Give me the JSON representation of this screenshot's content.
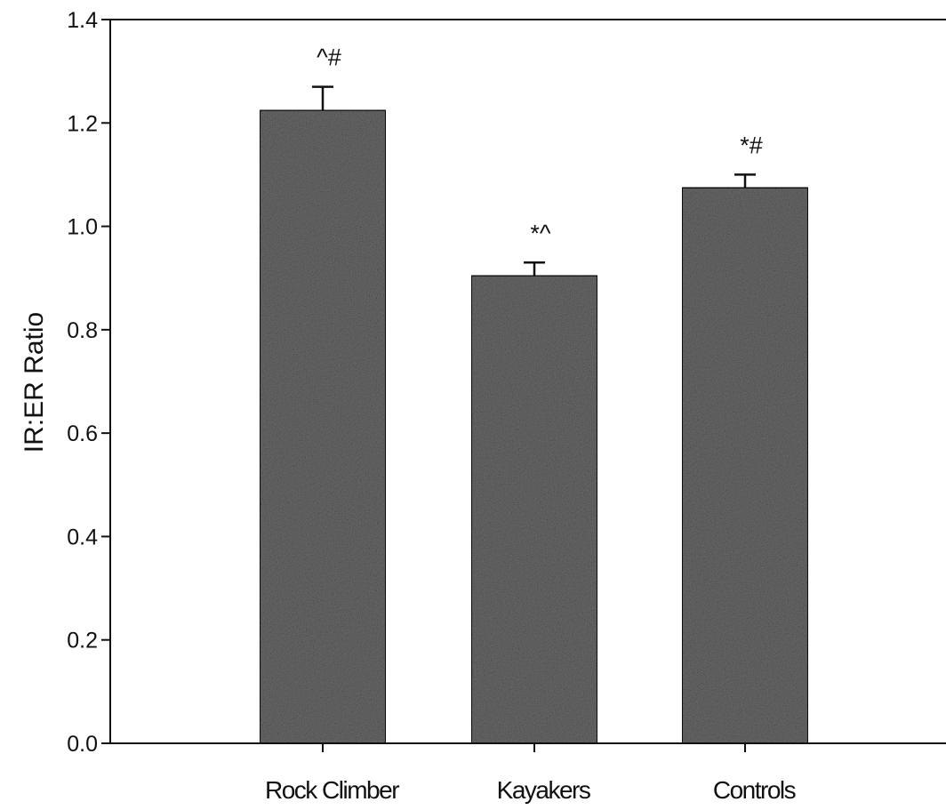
{
  "chart_data": {
    "type": "bar",
    "title": "",
    "xlabel": "",
    "ylabel": "IR:ER Ratio",
    "ylim": [
      0,
      1.4
    ],
    "yticks": [
      "0.0",
      "0.2",
      "0.4",
      "0.6",
      "0.8",
      "1.0",
      "1.2",
      "1.4"
    ],
    "categories": [
      "Rock Climber",
      "Kayakers",
      "Controls"
    ],
    "values": [
      1.225,
      0.905,
      1.075
    ],
    "errors": [
      0.045,
      0.025,
      0.025
    ],
    "annotations": [
      "^#",
      "*^",
      "*#"
    ],
    "grid": false,
    "legend": "none",
    "bar_color": "#6b6b6b"
  }
}
